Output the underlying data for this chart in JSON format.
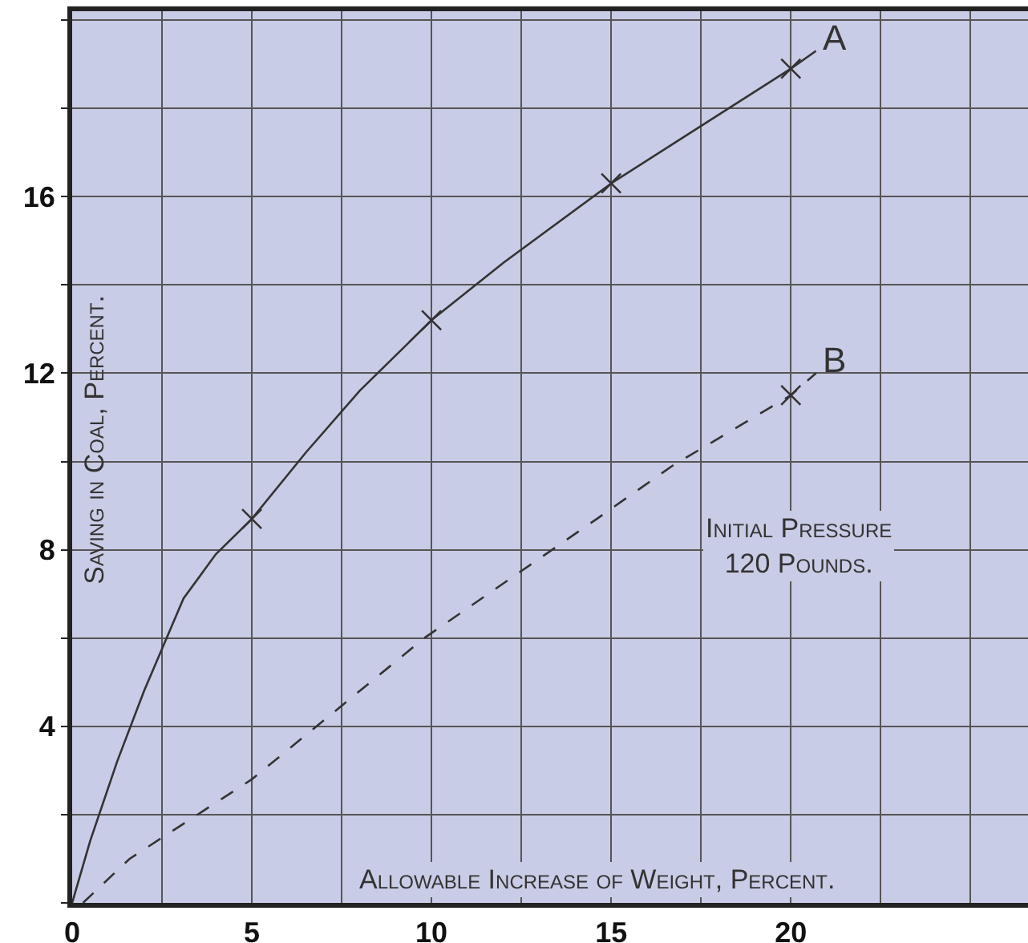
{
  "chart_data": {
    "type": "line",
    "xlabel": "Allowable Increase of Weight, Percent.",
    "ylabel": "Saving in Coal, Percent.",
    "annotations": [
      "Initial Pressure\n120 Pounds."
    ],
    "series": [
      {
        "name": "A",
        "type": "line",
        "color": "#333333",
        "line_style": "solid",
        "marker": "none",
        "x": [
          0,
          0.5,
          1.25,
          2,
          3.1,
          4,
          5,
          6.5,
          8,
          10,
          12,
          15,
          17.5,
          20,
          20.7
        ],
        "values": [
          0,
          1.4,
          3.2,
          4.8,
          6.9,
          7.9,
          8.7,
          10.2,
          11.6,
          13.2,
          14.5,
          16.3,
          17.6,
          18.9,
          19.3
        ]
      },
      {
        "type": "scatter",
        "color": "#333333",
        "marker": "cross",
        "x": [
          5,
          10,
          15,
          20
        ],
        "values": [
          8.7,
          13.2,
          16.3,
          18.9
        ]
      },
      {
        "name": "B",
        "type": "line",
        "color": "#333333",
        "line_style": "dashed",
        "marker": "none",
        "x": [
          0.3,
          1.6,
          5,
          9.8,
          14.6,
          16.7,
          20,
          20.7
        ],
        "values": [
          0,
          1,
          2.8,
          6,
          8.7,
          9.9,
          11.5,
          12
        ]
      },
      {
        "type": "scatter",
        "color": "#333333",
        "marker": "cross",
        "x": [
          20
        ],
        "values": [
          11.5
        ]
      }
    ],
    "xlim": [
      0,
      26.6
    ],
    "ylim": [
      0,
      20.2
    ],
    "xticks": [
      0,
      {
        "value": 2.5,
        "label": null
      },
      5,
      {
        "value": 7.5,
        "label": null
      },
      10,
      {
        "value": 12.5,
        "label": null
      },
      15,
      {
        "value": 17.5,
        "label": null
      },
      20,
      {
        "value": 22.5,
        "label": null
      },
      {
        "value": 25,
        "label": null
      }
    ],
    "yticks": [
      {
        "value": 0,
        "label": null
      },
      {
        "value": 2,
        "label": null
      },
      4,
      {
        "value": 6,
        "label": null
      },
      8,
      {
        "value": 10,
        "label": null
      },
      12,
      {
        "value": 14,
        "label": null
      },
      16,
      {
        "value": 18,
        "label": null
      },
      {
        "value": 20,
        "label": null
      }
    ],
    "grid": true
  }
}
